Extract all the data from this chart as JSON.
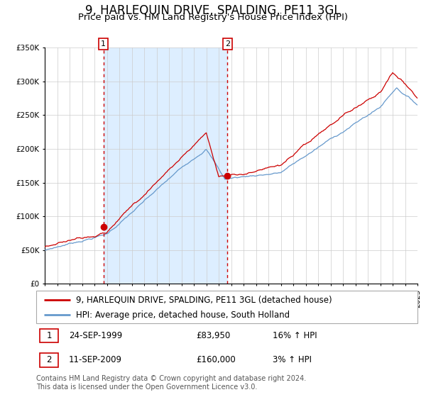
{
  "title": "9, HARLEQUIN DRIVE, SPALDING, PE11 3GL",
  "subtitle": "Price paid vs. HM Land Registry's House Price Index (HPI)",
  "ylim": [
    0,
    350000
  ],
  "yticks": [
    0,
    50000,
    100000,
    150000,
    200000,
    250000,
    300000,
    350000
  ],
  "ytick_labels": [
    "£0",
    "£50K",
    "£100K",
    "£150K",
    "£200K",
    "£250K",
    "£300K",
    "£350K"
  ],
  "x_start_year": 1995,
  "x_end_year": 2025,
  "sale1_date": "24-SEP-1999",
  "sale1_year": 1999.73,
  "sale1_price": 83950,
  "sale1_label": "1",
  "sale2_date": "11-SEP-2009",
  "sale2_year": 2009.7,
  "sale2_price": 160000,
  "sale2_label": "2",
  "hpi_percent1": "16% ↑ HPI",
  "hpi_percent2": "3% ↑ HPI",
  "legend_line1": "9, HARLEQUIN DRIVE, SPALDING, PE11 3GL (detached house)",
  "legend_line2": "HPI: Average price, detached house, South Holland",
  "line_color_red": "#cc0000",
  "line_color_blue": "#6699cc",
  "shaded_region_color": "#ddeeff",
  "background_color": "#ffffff",
  "grid_color": "#cccccc",
  "sale_marker_color": "#cc0000",
  "dashed_line_color": "#cc0000",
  "footer_text": "Contains HM Land Registry data © Crown copyright and database right 2024.\nThis data is licensed under the Open Government Licence v3.0.",
  "title_fontsize": 12,
  "subtitle_fontsize": 9.5,
  "axis_fontsize": 7.5,
  "legend_fontsize": 8.5,
  "footer_fontsize": 7
}
